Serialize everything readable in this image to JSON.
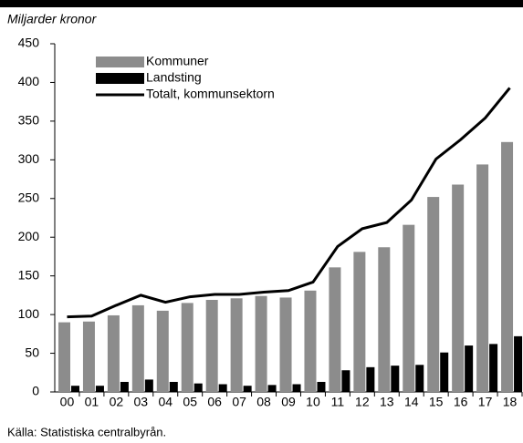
{
  "chart_data": {
    "type": "bar",
    "ylabel": "Miljarder kronor",
    "source": "Källa: Statistiska centralbyrån.",
    "categories": [
      "00",
      "01",
      "02",
      "03",
      "04",
      "05",
      "06",
      "07",
      "08",
      "09",
      "10",
      "11",
      "12",
      "13",
      "14",
      "15",
      "16",
      "17",
      "18"
    ],
    "series": [
      {
        "name": "Kommuner",
        "type": "bar",
        "color": "#8c8c8c",
        "values": [
          90,
          91,
          99,
          112,
          105,
          115,
          119,
          121,
          124,
          122,
          131,
          161,
          181,
          187,
          216,
          252,
          268,
          294,
          323
        ]
      },
      {
        "name": "Landsting",
        "type": "bar",
        "color": "#000000",
        "values": [
          8,
          8,
          13,
          16,
          13,
          11,
          10,
          8,
          9,
          10,
          13,
          28,
          32,
          34,
          35,
          51,
          60,
          62,
          72
        ]
      },
      {
        "name": "Totalt, kommunsektorn",
        "type": "line",
        "color": "#000000",
        "values": [
          97,
          98,
          112,
          125,
          116,
          123,
          126,
          126,
          129,
          131,
          142,
          188,
          211,
          219,
          248,
          301,
          326,
          354,
          393
        ]
      }
    ],
    "ylim": [
      0,
      450
    ],
    "yticks": [
      0,
      50,
      100,
      150,
      200,
      250,
      300,
      350,
      400,
      450
    ],
    "legend": "upper left"
  }
}
